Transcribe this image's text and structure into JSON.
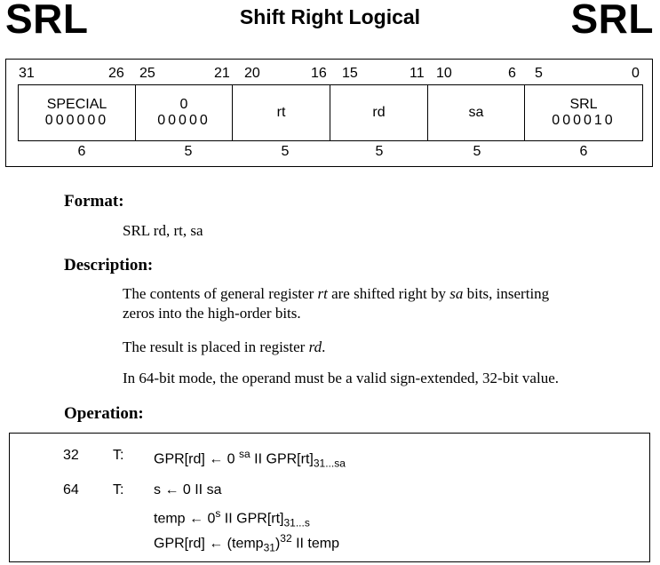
{
  "header": {
    "mnemonic_left": "SRL",
    "title": "Shift Right Logical",
    "mnemonic_right": "SRL"
  },
  "encoding": {
    "bit_positions": [
      "31",
      "26",
      "25",
      "21",
      "20",
      "16",
      "15",
      "11",
      "10",
      "6",
      "5",
      "0"
    ],
    "fields": [
      {
        "name": "SPECIAL",
        "bits": "000000",
        "width": "6"
      },
      {
        "name": "0",
        "bits": "00000",
        "width": "5"
      },
      {
        "name": "rt",
        "bits": "",
        "width": "5"
      },
      {
        "name": "rd",
        "bits": "",
        "width": "5"
      },
      {
        "name": "sa",
        "bits": "",
        "width": "5"
      },
      {
        "name": "SRL",
        "bits": "000010",
        "width": "6"
      }
    ]
  },
  "format": {
    "heading": "Format:",
    "text": "SRL rd, rt, sa"
  },
  "description": {
    "heading": "Description:",
    "p1_a": "The contents of general register ",
    "p1_rt": "rt",
    "p1_b": " are shifted right by ",
    "p1_sa": "sa",
    "p1_c": " bits, inserting",
    "p1_line2": "zeros into the high-order bits.",
    "p2_a": "The result is placed in register ",
    "p2_rd": "rd",
    "p2_b": ".",
    "p3": "In 64-bit mode, the operand must be a valid sign-extended, 32-bit value."
  },
  "operation": {
    "heading": "Operation:",
    "rows": [
      {
        "mode": "32",
        "t": "T:",
        "l1": "GPR[rd] ← 0 ",
        "sup1": "sa",
        "l2": " II GPR[rt]",
        "sub1": "31...sa"
      },
      {
        "mode": "64",
        "t": "T:",
        "l1": "s ← 0 II sa"
      }
    ],
    "row3": {
      "a": "temp ← 0",
      "sup": "s",
      "b": " II GPR[rt]",
      "sub": "31...s"
    },
    "row4": {
      "a": "GPR[rd] ← (temp",
      "sub": "31",
      "b": ")",
      "sup": "32",
      "c": " II temp"
    }
  }
}
